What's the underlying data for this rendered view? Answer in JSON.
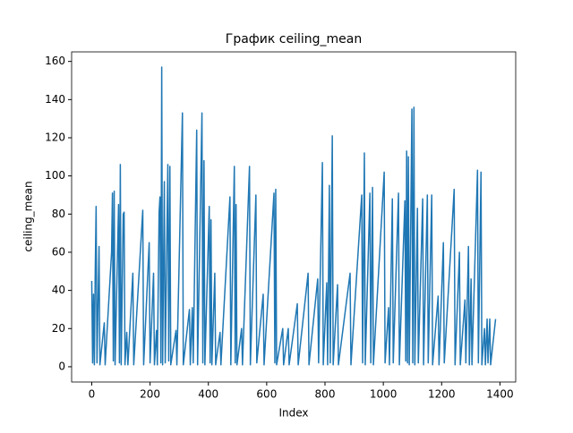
{
  "chart_data": {
    "type": "line",
    "title": "График ceiling_mean",
    "x_label": "Index",
    "y_label": "ceiling_mean",
    "x": [
      0,
      3,
      6,
      9,
      12,
      15,
      18,
      25,
      28,
      43,
      46,
      68,
      71,
      74,
      77,
      80,
      92,
      95,
      98,
      101,
      108,
      111,
      114,
      120,
      124,
      141,
      144,
      175,
      178,
      197,
      200,
      212,
      215,
      222,
      225,
      231,
      234,
      237,
      240,
      243,
      249,
      252,
      261,
      264,
      268,
      271,
      289,
      292,
      311,
      314,
      335,
      338,
      345,
      348,
      360,
      363,
      378,
      381,
      385,
      388,
      403,
      406,
      409,
      412,
      422,
      425,
      440,
      443,
      474,
      477,
      489,
      492,
      495,
      498,
      514,
      517,
      541,
      544,
      563,
      566,
      588,
      591,
      625,
      628,
      631,
      634,
      655,
      658,
      674,
      677,
      705,
      708,
      742,
      745,
      775,
      778,
      791,
      794,
      806,
      809,
      815,
      818,
      825,
      828,
      843,
      846,
      886,
      889,
      926,
      929,
      935,
      938,
      954,
      957,
      963,
      966,
      1003,
      1006,
      1018,
      1021,
      1031,
      1034,
      1052,
      1055,
      1074,
      1077,
      1080,
      1083,
      1086,
      1089,
      1098,
      1101,
      1105,
      1108,
      1117,
      1120,
      1135,
      1138,
      1151,
      1154,
      1166,
      1169,
      1188,
      1191,
      1206,
      1209,
      1243,
      1246,
      1261,
      1264,
      1280,
      1283,
      1292,
      1295,
      1301,
      1304,
      1323,
      1326,
      1335,
      1338,
      1347,
      1350,
      1356,
      1359,
      1365,
      1368,
      1385
    ],
    "series": [
      {
        "name": "ceiling_mean",
        "color": "#1f77b4",
        "values": [
          45,
          2,
          38,
          1,
          50,
          84,
          2,
          63,
          1,
          23,
          1,
          60,
          91,
          3,
          92,
          1,
          85,
          2,
          106,
          1,
          80,
          81,
          1,
          18,
          1,
          49,
          1,
          82,
          1,
          65,
          2,
          49,
          1,
          19,
          1,
          81,
          89,
          2,
          157,
          1,
          97,
          2,
          106,
          3,
          105,
          1,
          19,
          1,
          133,
          1,
          30,
          1,
          31,
          2,
          124,
          1,
          133,
          2,
          108,
          1,
          84,
          2,
          77,
          1,
          49,
          1,
          18,
          1,
          89,
          1,
          105,
          2,
          85,
          1,
          20,
          1,
          105,
          1,
          90,
          2,
          38,
          1,
          91,
          2,
          93,
          1,
          20,
          1,
          20,
          1,
          33,
          1,
          49,
          1,
          46,
          2,
          107,
          1,
          44,
          1,
          95,
          2,
          121,
          1,
          43,
          1,
          49,
          1,
          90,
          2,
          112,
          1,
          91,
          2,
          94,
          1,
          102,
          2,
          31,
          1,
          88,
          2,
          91,
          1,
          87,
          3,
          113,
          2,
          110,
          1,
          135,
          2,
          136,
          1,
          83,
          2,
          88,
          1,
          90,
          2,
          90,
          1,
          37,
          1,
          65,
          2,
          93,
          1,
          60,
          1,
          35,
          2,
          63,
          1,
          46,
          1,
          103,
          2,
          102,
          1,
          20,
          1,
          25,
          2,
          25,
          1,
          25
        ]
      }
    ],
    "xlim": [
      -69,
      1454
    ],
    "ylim": [
      -8,
      165
    ],
    "xticks": [
      0,
      200,
      400,
      600,
      800,
      1000,
      1200,
      1400
    ],
    "yticks": [
      0,
      20,
      40,
      60,
      80,
      100,
      120,
      140,
      160
    ]
  }
}
